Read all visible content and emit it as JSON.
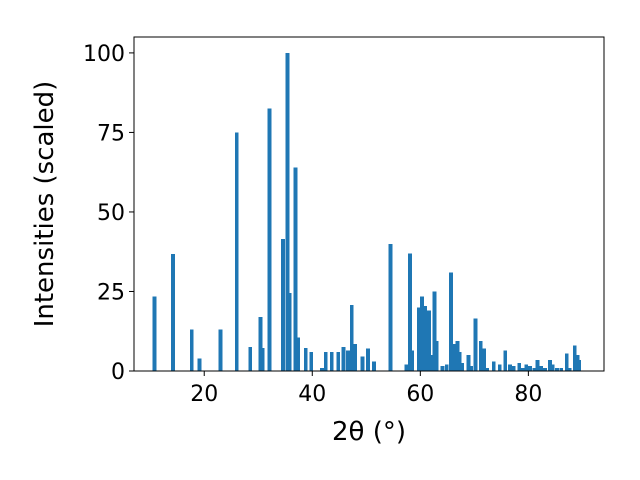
{
  "chart_data": {
    "type": "bar",
    "xlabel": "2θ (°)",
    "ylabel": "Intensities (scaled)",
    "xlim": [
      7,
      94
    ],
    "ylim": [
      0,
      105
    ],
    "xticks": [
      "20",
      "40",
      "60",
      "80"
    ],
    "yticks": [
      "0",
      "25",
      "50",
      "75",
      "100"
    ],
    "grid": false,
    "bar_color": "#1f77b4",
    "bar_width": 0.7,
    "x": [
      10.8,
      14.2,
      17.7,
      19.1,
      23.0,
      26.0,
      28.5,
      30.4,
      30.8,
      32.1,
      34.6,
      35.4,
      35.8,
      36.9,
      37.4,
      38.8,
      39.8,
      41.8,
      42.5,
      43.6,
      44.8,
      45.8,
      46.6,
      47.3,
      47.9,
      49.3,
      50.3,
      51.4,
      54.5,
      57.4,
      58.1,
      58.5,
      59.7,
      60.3,
      60.9,
      61.6,
      62.2,
      62.6,
      63.0,
      64.1,
      64.9,
      65.7,
      66.3,
      66.9,
      67.3,
      67.7,
      68.9,
      69.4,
      70.2,
      71.2,
      71.8,
      72.4,
      73.6,
      74.7,
      75.7,
      76.6,
      77.3,
      78.3,
      78.9,
      79.6,
      80.3,
      81.1,
      81.7,
      82.4,
      83.1,
      84.0,
      84.5,
      85.3,
      86.1,
      87.1,
      87.6,
      88.6,
      89.1,
      89.4
    ],
    "values": [
      23.5,
      36.8,
      13.0,
      4.0,
      13.0,
      75.0,
      7.5,
      17.0,
      7.2,
      82.5,
      41.5,
      100.0,
      24.5,
      64.0,
      10.5,
      7.2,
      6.0,
      1.0,
      6.0,
      6.0,
      6.0,
      7.5,
      6.5,
      20.8,
      8.5,
      4.5,
      7.0,
      3.0,
      40.0,
      2.0,
      37.0,
      6.5,
      20.0,
      23.5,
      20.5,
      19.0,
      5.0,
      25.0,
      9.5,
      1.5,
      2.0,
      31.0,
      8.5,
      9.5,
      6.0,
      2.5,
      5.0,
      1.5,
      16.5,
      9.5,
      7.0,
      1.0,
      3.0,
      2.0,
      6.5,
      2.0,
      1.5,
      2.5,
      1.0,
      2.0,
      1.5,
      1.0,
      3.5,
      1.5,
      1.0,
      3.5,
      2.0,
      1.0,
      1.0,
      5.5,
      1.0,
      8.0,
      5.0,
      3.5
    ]
  }
}
